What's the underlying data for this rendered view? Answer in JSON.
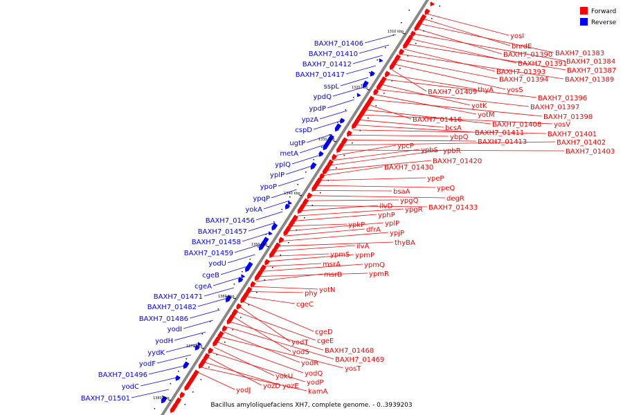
{
  "caption": "Bacillus amyloliquefaciens XH7, complete genome. - 0..3939203",
  "legend": [
    {
      "label": "Forward",
      "color": "#ff0000"
    },
    {
      "label": "Reverse",
      "color": "#0000ff"
    }
  ],
  "colors": {
    "forward": "#ff0000",
    "reverse": "#0000ff",
    "backbone": "#888888"
  },
  "ticks": [
    "1310 kbp",
    "1320 kbp",
    "1330 kbp",
    "1340 kbp",
    "1350 kbp",
    "1360 kbp",
    "1370 kbp",
    "1380 kbp"
  ],
  "reverse_labels": [
    "BAXH7_01406",
    "BAXH7_01410",
    "BAXH7_01412",
    "BAXH7_01417",
    "sspL",
    "ypdQ",
    "ypdP",
    "ypzA",
    "cspD",
    "ugtP",
    "metA",
    "yplQ",
    "yplP",
    "ypoP",
    "ypqP",
    "yokA",
    "BAXH7_01456",
    "BAXH7_01457",
    "BAXH7_01458",
    "BAXH7_01459",
    "yodU",
    "cgeB",
    "cgeA",
    "BAXH7_01471",
    "BAXH7_01482",
    "BAXH7_01486",
    "yodI",
    "yodH",
    "yydK",
    "yodF",
    "BAXH7_01496",
    "yodC",
    "BAXH7_01501"
  ],
  "forward_labels": [
    "yosI",
    "bnrdE",
    "BAXH7_01383",
    "BAXH7_01390",
    "BAXH7_01384",
    "BAXH7_01391",
    "BAXH7_01387",
    "BAXH7_01393",
    "BAXH7_01389",
    "BAXH7_01394",
    "yosS",
    "BAXH7_01409",
    "thyA",
    "BAXH7_01396",
    "yotK",
    "BAXH7_01397",
    "yotM",
    "BAXH7_01398",
    "BAXH7_01416",
    "BAXH7_01408",
    "yosV",
    "bcsA",
    "BAXH7_01411",
    "BAXH7_01401",
    "ybpQ",
    "BAXH7_01413",
    "BAXH7_01402",
    "BAXH7_01403",
    "ypcP",
    "ypbS",
    "ypbR",
    "BAXH7_01420",
    "BAXH7_01430",
    "ypeP",
    "ypeQ",
    "bsaA",
    "degR",
    "ypgQ",
    "BAXH7_01433",
    "ilvD",
    "ypgR",
    "yphP",
    "ypkP",
    "yplP",
    "dfrA",
    "ypjP",
    "thyBA",
    "ilvA",
    "ypmS",
    "ypmP",
    "msrA",
    "ypmQ",
    "ypmR",
    "msrB",
    "yotN",
    "phy",
    "cgeC",
    "cgeD",
    "yodT",
    "cgeE",
    "yodS",
    "BAXH7_01468",
    "BAXH7_01469",
    "yodR",
    "yosT",
    "yodQ",
    "yokU",
    "yodP",
    "yozD",
    "yozE",
    "kamA",
    "yodJ"
  ]
}
